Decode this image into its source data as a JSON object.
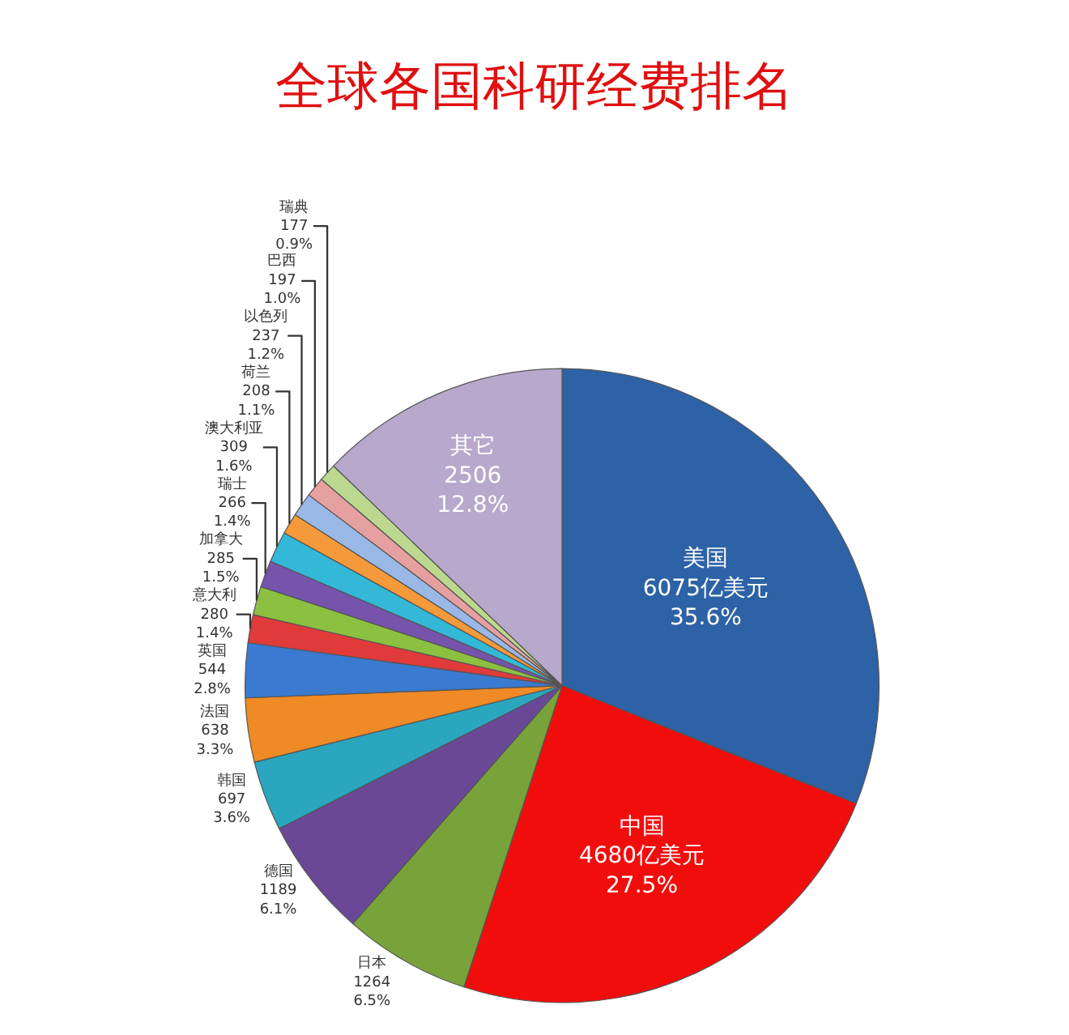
{
  "chart_data": {
    "type": "pie",
    "title": "全球各国科研经费排名",
    "categories": [
      "美国",
      "中国",
      "日本",
      "德国",
      "韩国",
      "法国",
      "英国",
      "意大利",
      "加拿大",
      "瑞士",
      "澳大利亚",
      "荷兰",
      "以色列",
      "巴西",
      "瑞典",
      "其它"
    ],
    "values": [
      6075,
      4680,
      1264,
      1189,
      697,
      638,
      544,
      280,
      285,
      266,
      309,
      208,
      237,
      197,
      177,
      2506
    ],
    "value_labels": [
      "6075亿美元\n35.6%",
      "4680亿美元\n27.5%",
      "1264\n6.5%",
      "1189\n6.1%",
      "697\n3.6%",
      "638\n3.3%",
      "544\n2.8%",
      "280\n1.4%",
      "285\n1.5%",
      "266\n1.4%",
      "309\n1.6%",
      "208\n1.1%",
      "237\n1.2%",
      "197\n1.0%",
      "177\n0.9%",
      "2506\n12.8%"
    ],
    "colors": [
      "#2d62a6",
      "#f20d0d",
      "#78a33a",
      "#6a4896",
      "#2aa6bf",
      "#f08a24",
      "#3a7ad0",
      "#e03a3a",
      "#8cc040",
      "#7654ac",
      "#33b8d8",
      "#f59a3a",
      "#9ab8e6",
      "#e6a0a0",
      "#bcd88e",
      "#b7a8cc"
    ],
    "legend": false
  }
}
